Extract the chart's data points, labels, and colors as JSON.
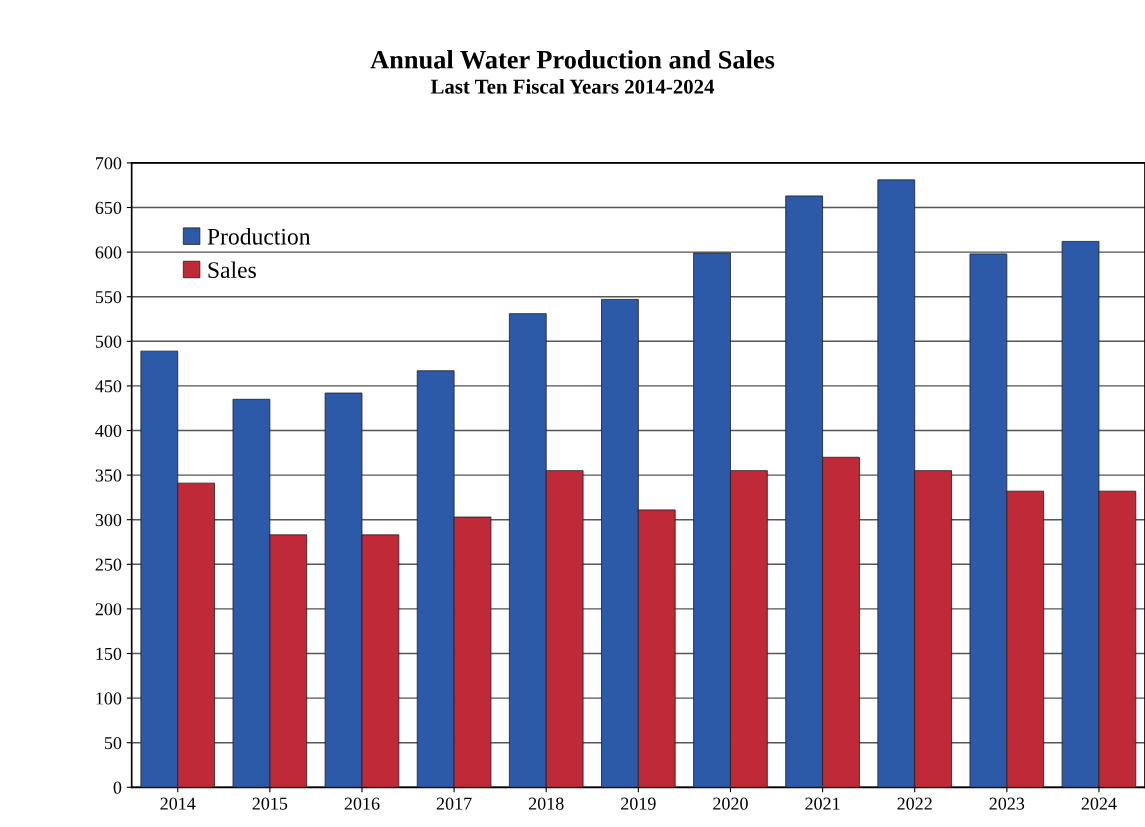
{
  "chart_data": {
    "type": "bar",
    "title": "Annual Water Production and Sales",
    "subtitle": "Last Ten Fiscal Years 2014-2024",
    "categories": [
      "2014",
      "2015",
      "2016",
      "2017",
      "2018",
      "2019",
      "2020",
      "2021",
      "2022",
      "2023",
      "2024"
    ],
    "series": [
      {
        "name": "Production",
        "color": "#2c5aa8",
        "values": [
          489,
          435,
          442,
          467,
          531,
          547,
          599,
          663,
          681,
          598,
          612
        ]
      },
      {
        "name": "Sales",
        "color": "#c02a38",
        "values": [
          341,
          283,
          283,
          303,
          355,
          311,
          355,
          370,
          355,
          332,
          332
        ]
      }
    ],
    "ylim": [
      0,
      700
    ],
    "yticks": [
      0,
      50,
      100,
      150,
      200,
      250,
      300,
      350,
      400,
      450,
      500,
      550,
      600,
      650,
      700
    ],
    "grid": "y",
    "legend": "top left"
  }
}
